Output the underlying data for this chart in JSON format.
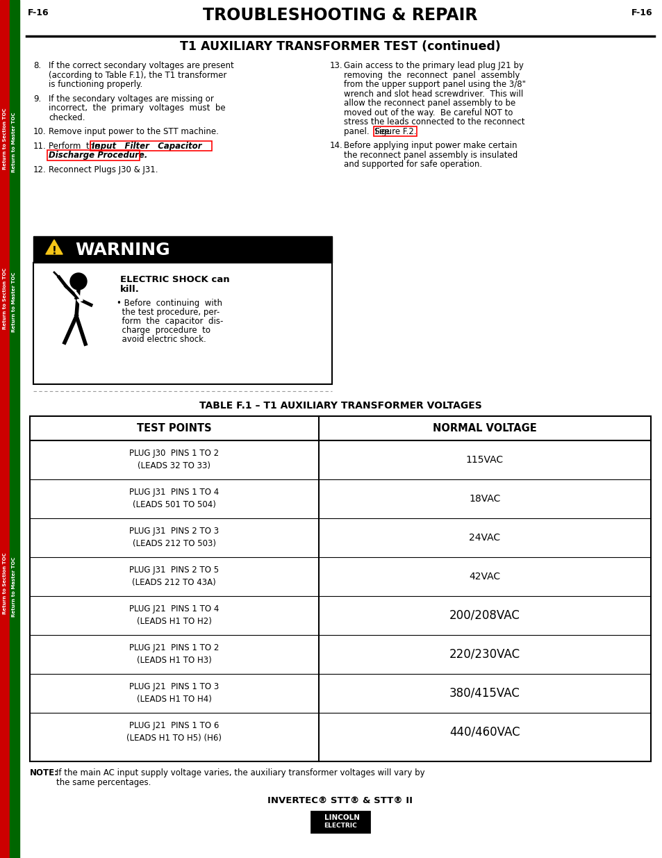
{
  "page_label_left": "F-16",
  "page_label_right": "F-16",
  "main_title": "TROUBLESHOOTING & REPAIR",
  "section_title": "T1 AUXILIARY TRANSFORMER TEST (continued)",
  "left_col_items": [
    {
      "num": "8.",
      "text": "If the correct secondary voltages are present\n(according to Table F.1), the T1 transformer\nis functioning properly."
    },
    {
      "num": "9.",
      "text": "If the secondary voltages are missing or\nincorrect,  the  primary  voltages  must  be\nchecked."
    },
    {
      "num": "10.",
      "text": "Remove input power to the STT machine."
    },
    {
      "num": "11.",
      "text_before": "Perform  the ",
      "link_line1": "Input   Filter   Capacitor",
      "link_line2": "Discharge Procedure.",
      "link": true
    },
    {
      "num": "12.",
      "text": "Reconnect Plugs J30 & J31."
    }
  ],
  "right_col_items": [
    {
      "num": "13.",
      "text_lines": [
        "Gain access to the primary lead plug J21 by",
        "removing  the  reconnect  panel  assembly",
        "from the upper support panel using the 3/8\"",
        "wrench and slot head screwdriver.  This will",
        "allow the reconnect panel assembly to be",
        "moved out of the way.  Be careful NOT to",
        "stress the leads connected to the reconnect",
        "panel.  See "
      ],
      "figure_link": "Figure F.2.",
      "figure_link_inline": true
    },
    {
      "num": "14.",
      "text_lines": [
        "Before applying input power make certain",
        "the reconnect panel assembly is insulated",
        "and supported for safe operation."
      ]
    }
  ],
  "warning_title": "WARNING",
  "warning_bold_line1": "ELECTRIC SHOCK can",
  "warning_bold_line2": "kill.",
  "warning_bullet_lines": [
    "• Before  continuing  with",
    "  the test procedure, per-",
    "  form  the  capacitor  dis-",
    "  charge  procedure  to",
    "  avoid electric shock."
  ],
  "table_title": "TABLE F.1 – T1 AUXILIARY TRANSFORMER VOLTAGES",
  "table_headers": [
    "TEST POINTS",
    "NORMAL VOLTAGE"
  ],
  "table_rows": [
    [
      "PLUG J30  PINS 1 TO 2\n(LEADS 32 TO 33)",
      "115VAC"
    ],
    [
      "PLUG J31  PINS 1 TO 4\n(LEADS 501 TO 504)",
      "18VAC"
    ],
    [
      "PLUG J31  PINS 2 TO 3\n(LEADS 212 TO 503)",
      "24VAC"
    ],
    [
      "PLUG J31  PINS 2 TO 5\n(LEADS 212 TO 43A)",
      "42VAC"
    ],
    [
      "PLUG J21  PINS 1 TO 4\n(LEADS H1 TO H2)",
      "200/208VAC"
    ],
    [
      "PLUG J21  PINS 1 TO 2\n(LEADS H1 TO H3)",
      "220/230VAC"
    ],
    [
      "PLUG J21  PINS 1 TO 3\n(LEADS H1 TO H4)",
      "380/415VAC"
    ],
    [
      "PLUG J21  PINS 1 TO 6\n(LEADS H1 TO H5) (H6)",
      "440/460VAC"
    ]
  ],
  "footer_text": "INVERTEC® STT® & STT® II",
  "bg_color": "#ffffff",
  "sidebar_red": "#cc0000",
  "sidebar_green": "#006600"
}
